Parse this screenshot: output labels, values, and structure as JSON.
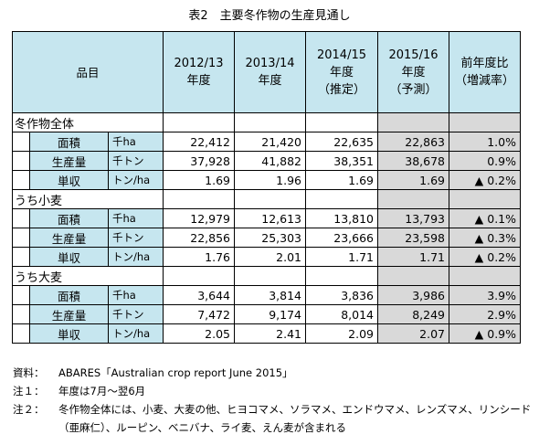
{
  "title": "表2　主要冬作物の生産見通し",
  "header": {
    "item": "品目",
    "y2012": [
      "2012/13",
      "年度"
    ],
    "y2013": [
      "2013/14",
      "年度"
    ],
    "y2014": [
      "2014/15",
      "年度",
      "（推定）"
    ],
    "y2015": [
      "2015/16",
      "年度",
      "（予測）"
    ],
    "change": [
      "前年度比",
      "（増減率）"
    ]
  },
  "groups": [
    {
      "name": "冬作物全体",
      "rows": [
        {
          "item": "面積",
          "unit": "千ha",
          "v1": "22,412",
          "v2": "21,420",
          "v3": "22,635",
          "v4": "22,863",
          "chg": "1.0%"
        },
        {
          "item": "生産量",
          "unit": "千トン",
          "v1": "37,928",
          "v2": "41,882",
          "v3": "38,351",
          "v4": "38,678",
          "chg": "0.9%"
        },
        {
          "item": "単収",
          "unit": "トン/ha",
          "v1": "1.69",
          "v2": "1.96",
          "v3": "1.69",
          "v4": "1.69",
          "chg": "▲ 0.2%"
        }
      ]
    },
    {
      "name": "うち小麦",
      "rows": [
        {
          "item": "面積",
          "unit": "千ha",
          "v1": "12,979",
          "v2": "12,613",
          "v3": "13,810",
          "v4": "13,793",
          "chg": "▲ 0.1%"
        },
        {
          "item": "生産量",
          "unit": "千トン",
          "v1": "22,856",
          "v2": "25,303",
          "v3": "23,666",
          "v4": "23,598",
          "chg": "▲ 0.3%"
        },
        {
          "item": "単収",
          "unit": "トン/ha",
          "v1": "1.76",
          "v2": "2.01",
          "v3": "1.71",
          "v4": "1.71",
          "chg": "▲ 0.2%"
        }
      ]
    },
    {
      "name": "うち大麦",
      "rows": [
        {
          "item": "面積",
          "unit": "千ha",
          "v1": "3,644",
          "v2": "3,814",
          "v3": "3,836",
          "v4": "3,986",
          "chg": "3.9%"
        },
        {
          "item": "生産量",
          "unit": "千トン",
          "v1": "7,472",
          "v2": "9,174",
          "v3": "8,014",
          "v4": "8,249",
          "chg": "2.9%"
        },
        {
          "item": "単収",
          "unit": "トン/ha",
          "v1": "2.05",
          "v2": "2.41",
          "v3": "2.09",
          "v4": "2.07",
          "chg": "▲ 0.9%"
        }
      ]
    }
  ],
  "notes": [
    {
      "label": "資料：",
      "text": "ABARES「Australian crop report June 2015」"
    },
    {
      "label": "注１：",
      "text": "年度は7月～翌6月"
    },
    {
      "label": "注２：",
      "text": "冬作物全体には、小麦、大麦の他、ヒヨコマメ、ソラマメ、エンドウマメ、レンズマメ、リンシード（亜麻仁）、ルーピン、ベニバナ、ライ麦、えん麦が含まれる"
    }
  ]
}
